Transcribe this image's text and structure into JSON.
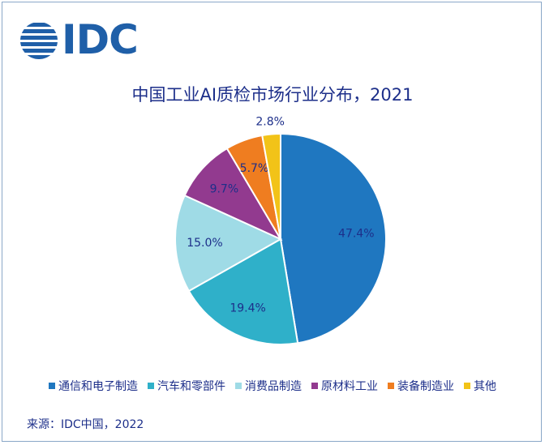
{
  "logo": {
    "text": "IDC",
    "color": "#1f5fa8"
  },
  "chart_data": {
    "type": "pie",
    "title": "中国工业AI质检市场行业分布，2021",
    "categories": [
      "通信和电子制造",
      "汽车和零部件",
      "消费品制造",
      "原材料工业",
      "装备制造业",
      "其他"
    ],
    "values": [
      47.4,
      19.4,
      15.0,
      9.7,
      5.7,
      2.8
    ],
    "labels": [
      "47.4%",
      "19.4%",
      "15.0%",
      "9.7%",
      "5.7%",
      "2.8%"
    ],
    "colors": [
      "#1f77c0",
      "#2fb0c9",
      "#9fdbe6",
      "#923a8f",
      "#ef7d20",
      "#f2c318"
    ],
    "legend_position": "bottom"
  },
  "source": "来源：IDC中国，2022"
}
